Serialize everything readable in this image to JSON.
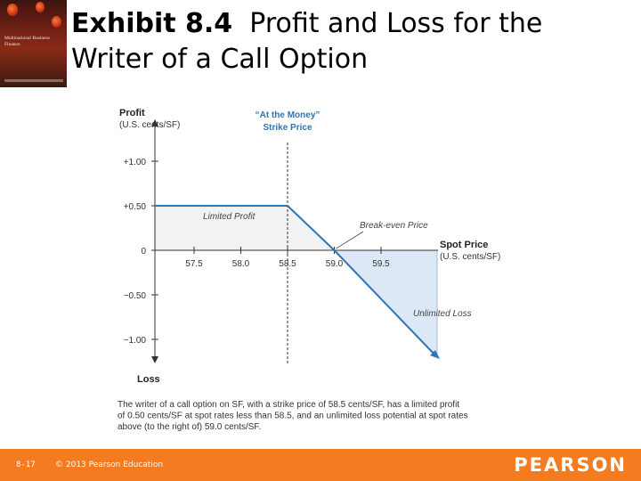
{
  "slide": {
    "title_bold": "Exhibit 8.4",
    "title_rest_line1": "Profit and Loss for the",
    "title_line2": "Writer of a Call Option",
    "book_cover_title": "Multinational Business Finance"
  },
  "footer": {
    "page": "8-17",
    "copyright": "© 2013 Pearson Education",
    "brand": "PEARSON",
    "color": "#f47b20"
  },
  "chart_data": {
    "type": "line",
    "y_axis_title": "Profit",
    "y_axis_unit": "(U.S. cents/SF)",
    "y_axis_bottom_label": "Loss",
    "x_axis_title": "Spot Price",
    "x_axis_unit": "(U.S. cents/SF)",
    "x_ticks": [
      57.5,
      58.0,
      58.5,
      59.0,
      59.5
    ],
    "x_tick_labels": [
      "57.5",
      "58.0",
      "58.5",
      "59.0",
      "59.5"
    ],
    "y_ticks": [
      1.0,
      0.5,
      0,
      -0.5,
      -1.0
    ],
    "y_tick_labels": [
      "+1.00",
      "+0.50",
      "0",
      "−0.50",
      "−1.00"
    ],
    "strike_label": [
      "“At the Money”",
      "Strike Price"
    ],
    "strike_price": 58.5,
    "series": [
      {
        "x": [
          56.7,
          58.5,
          59.0,
          60.1
        ],
        "y": [
          0.5,
          0.5,
          0.0,
          -1.2
        ]
      }
    ],
    "annotations": {
      "limited_profit": "Limited Profit",
      "break_even": "Break-even Price",
      "unlimited_loss": "Unlimited Loss"
    },
    "caption": [
      "The writer of a call option on SF, with a strike price of 58.5 cents/SF, has a limited profit",
      "of 0.50 cents/SF at spot rates less than 58.5, and an unlimited loss potential at spot rates",
      "above (to the right of) 59.0 cents/SF."
    ],
    "colors": {
      "line": "#2e75b6",
      "profit_fill": "#f2f2f2",
      "loss_fill": "#dce8f5",
      "title_blue": "#2e75b6"
    }
  }
}
